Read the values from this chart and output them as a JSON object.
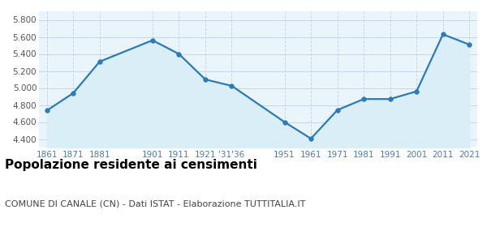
{
  "years": [
    1861,
    1871,
    1881,
    1901,
    1911,
    1921,
    1931,
    1951,
    1961,
    1971,
    1981,
    1991,
    2001,
    2011,
    2021
  ],
  "population": [
    4735,
    4940,
    5310,
    5560,
    5400,
    5100,
    5025,
    4600,
    4405,
    4740,
    4870,
    4870,
    4960,
    5630,
    5510
  ],
  "line_color": "#2b7bba",
  "fill_color": "#daeef8",
  "marker_color": "#2b7bba",
  "background_color": "#eaf4fb",
  "grid_color": "#c5d8e8",
  "title": "Popolazione residente ai censimenti",
  "subtitle": "COMUNE DI CANALE (CN) - Dati ISTAT - Elaborazione TUTTITALIA.IT",
  "ylim": [
    4300,
    5900
  ],
  "yticks": [
    4400,
    4600,
    4800,
    5000,
    5200,
    5400,
    5600,
    5800
  ],
  "x_tick_positions": [
    1861,
    1871,
    1881,
    1901,
    1911,
    1921,
    1931,
    1951,
    1961,
    1971,
    1981,
    1991,
    2001,
    2011,
    2021
  ],
  "x_tick_labels": [
    "1861",
    "1871",
    "1881",
    "1901",
    "1911",
    "1921",
    "'31'36",
    "1951",
    "1961",
    "1971",
    "1981",
    "1991",
    "2001",
    "2011",
    "2021"
  ],
  "title_fontsize": 11,
  "subtitle_fontsize": 8,
  "tick_fontsize": 7.5,
  "tick_color": "#4a7ab5",
  "ytick_color": "#555555"
}
